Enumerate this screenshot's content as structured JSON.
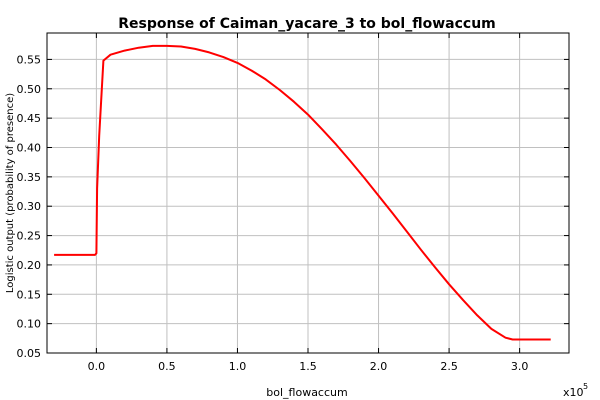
{
  "chart_data": {
    "type": "line",
    "title": "Response of Caiman_yacare_3 to bol_flowaccum",
    "xlabel": "bol_flowaccum",
    "ylabel": "Logistic output (probability of presence)",
    "x_multiplier_base": "x10",
    "x_multiplier_exp": "5",
    "xlim": [
      -0.35,
      3.35
    ],
    "ylim": [
      0.05,
      0.595
    ],
    "x_ticks": [
      0.0,
      0.5,
      1.0,
      1.5,
      2.0,
      2.5,
      3.0
    ],
    "x_tick_labels": [
      "0.0",
      "0.5",
      "1.0",
      "1.5",
      "2.0",
      "2.5",
      "3.0"
    ],
    "y_ticks": [
      0.05,
      0.1,
      0.15,
      0.2,
      0.25,
      0.3,
      0.35,
      0.4,
      0.45,
      0.5,
      0.55
    ],
    "y_tick_labels": [
      "0.05",
      "0.10",
      "0.15",
      "0.20",
      "0.25",
      "0.30",
      "0.35",
      "0.40",
      "0.45",
      "0.50",
      "0.55"
    ],
    "grid": true,
    "series": [
      {
        "color": "#ff0000",
        "x": [
          -0.3,
          -0.01,
          0.0,
          0.005,
          0.02,
          0.05,
          0.1,
          0.2,
          0.3,
          0.4,
          0.5,
          0.6,
          0.7,
          0.8,
          0.9,
          1.0,
          1.1,
          1.2,
          1.3,
          1.4,
          1.5,
          1.6,
          1.7,
          1.8,
          1.9,
          2.0,
          2.1,
          2.2,
          2.3,
          2.4,
          2.5,
          2.6,
          2.7,
          2.8,
          2.9,
          2.95,
          3.22
        ],
        "y": [
          0.217,
          0.217,
          0.22,
          0.33,
          0.42,
          0.548,
          0.558,
          0.565,
          0.57,
          0.573,
          0.573,
          0.572,
          0.568,
          0.562,
          0.554,
          0.544,
          0.531,
          0.516,
          0.498,
          0.478,
          0.456,
          0.431,
          0.405,
          0.377,
          0.348,
          0.318,
          0.288,
          0.257,
          0.226,
          0.196,
          0.167,
          0.14,
          0.114,
          0.091,
          0.076,
          0.073,
          0.073
        ]
      }
    ]
  }
}
